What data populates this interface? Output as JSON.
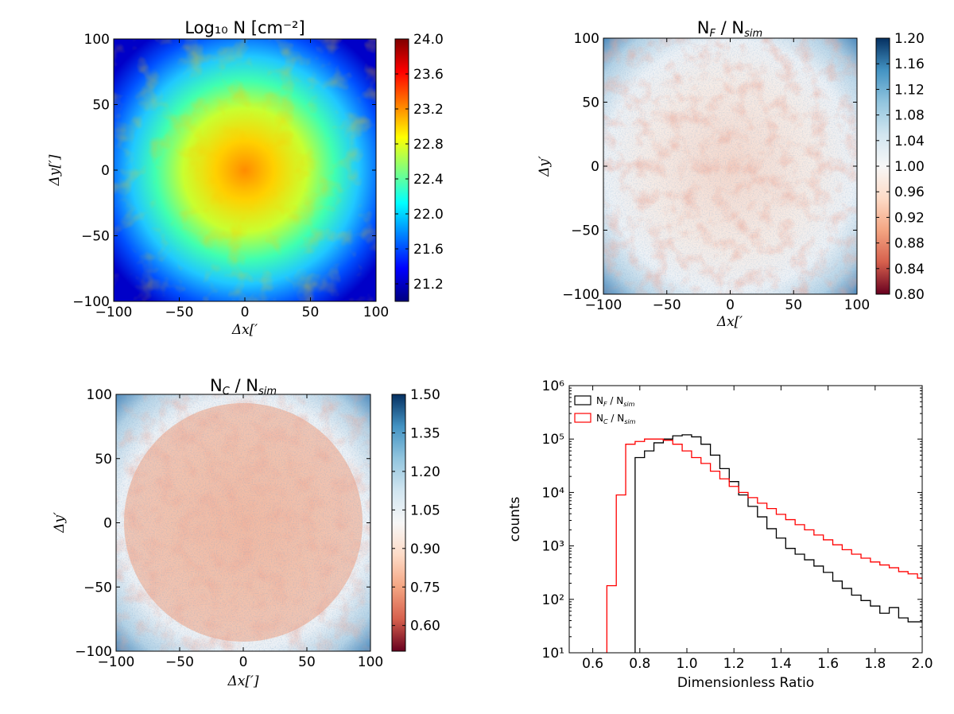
{
  "colors": {
    "jet": [
      "#00007f",
      "#0000ff",
      "#007fff",
      "#00ffff",
      "#7fff7f",
      "#ffff00",
      "#ff7f00",
      "#ff0000",
      "#7f0000"
    ],
    "rdbu": [
      "#67001f",
      "#d6604d",
      "#f4a582",
      "#fddbc7",
      "#f7f7f7",
      "#d1e5f0",
      "#92c5de",
      "#4393c3",
      "#053061"
    ],
    "hist_black": "#000000",
    "hist_red": "#ff0000"
  },
  "chart_data": [
    {
      "type": "heatmap",
      "title": "Log₁₀ N [cm⁻²]",
      "xlabel": "Δx[′",
      "ylabel": "Δy[′]",
      "xlim": [
        -100,
        100
      ],
      "ylim": [
        -100,
        100
      ],
      "xticks": [
        "−100",
        "−50",
        "0",
        "50",
        "100"
      ],
      "yticks": [
        "−100",
        "−50",
        "0",
        "50",
        "100"
      ],
      "colorbar_ticks": [
        "21.2",
        "21.6",
        "22.0",
        "22.4",
        "22.8",
        "23.2",
        "23.6",
        "24.0"
      ],
      "colorbar_range": [
        21.0,
        24.0
      ],
      "colormap": "jet"
    },
    {
      "type": "heatmap",
      "title": "N_F / N_sim",
      "xlabel": "Δx[′",
      "ylabel": "Δy′",
      "xlim": [
        -100,
        100
      ],
      "ylim": [
        -100,
        100
      ],
      "xticks": [
        "−100",
        "−50",
        "0",
        "50",
        "100"
      ],
      "yticks": [
        "−100",
        "−50",
        "0",
        "50",
        "100"
      ],
      "colorbar_ticks": [
        "0.80",
        "0.84",
        "0.88",
        "0.92",
        "0.96",
        "1.00",
        "1.04",
        "1.08",
        "1.12",
        "1.16",
        "1.20"
      ],
      "colorbar_range": [
        0.8,
        1.2
      ],
      "colormap": "RdBu"
    },
    {
      "type": "heatmap",
      "title": "N_C / N_sim",
      "xlabel": "Δx[′]",
      "ylabel": "Δy′",
      "xlim": [
        -100,
        100
      ],
      "ylim": [
        -100,
        100
      ],
      "xticks": [
        "−100",
        "−50",
        "0",
        "50",
        "100"
      ],
      "yticks": [
        "−100",
        "−50",
        "0",
        "50",
        "100"
      ],
      "colorbar_ticks": [
        "0.60",
        "0.75",
        "0.90",
        "1.05",
        "1.20",
        "1.35",
        "1.50"
      ],
      "colorbar_range": [
        0.5,
        1.5
      ],
      "colormap": "RdBu"
    },
    {
      "type": "line",
      "subtype": "step-histogram",
      "xlabel": "Dimensionless Ratio",
      "ylabel": "counts",
      "xlim": [
        0.5,
        2.0
      ],
      "ylim": [
        10,
        1000000
      ],
      "yscale": "log",
      "xticks": [
        "0.6",
        "0.8",
        "1.0",
        "1.2",
        "1.4",
        "1.6",
        "1.8",
        "2.0"
      ],
      "yticks": [
        "10¹",
        "10²",
        "10³",
        "10⁴",
        "10⁵",
        "10⁶"
      ],
      "legend_position": "top-left",
      "bin_width": 0.04,
      "series": [
        {
          "name": "N_F / N_sim",
          "color": "#000000",
          "bin_starts": [
            0.78,
            0.82,
            0.86,
            0.9,
            0.94,
            0.98,
            1.02,
            1.06,
            1.1,
            1.14,
            1.18,
            1.22,
            1.26,
            1.3,
            1.34,
            1.38,
            1.42,
            1.46,
            1.5,
            1.54,
            1.58,
            1.62,
            1.66,
            1.7,
            1.74,
            1.78,
            1.82,
            1.86,
            1.9,
            1.94,
            1.98
          ],
          "values": [
            45000,
            60000,
            85000,
            100000,
            115000,
            120000,
            110000,
            80000,
            50000,
            28000,
            16000,
            9000,
            5500,
            3500,
            2100,
            1400,
            900,
            700,
            550,
            420,
            320,
            220,
            160,
            120,
            95,
            75,
            55,
            70,
            45,
            38,
            38
          ]
        },
        {
          "name": "N_C / N_sim",
          "color": "#ff0000",
          "bin_starts": [
            0.66,
            0.7,
            0.74,
            0.78,
            0.82,
            0.86,
            0.9,
            0.94,
            0.98,
            1.02,
            1.06,
            1.1,
            1.14,
            1.18,
            1.22,
            1.26,
            1.3,
            1.34,
            1.38,
            1.42,
            1.46,
            1.5,
            1.54,
            1.58,
            1.62,
            1.66,
            1.7,
            1.74,
            1.78,
            1.82,
            1.86,
            1.9,
            1.94,
            1.98
          ],
          "values": [
            180,
            9000,
            80000,
            90000,
            100000,
            100000,
            95000,
            80000,
            60000,
            45000,
            35000,
            25000,
            18000,
            13000,
            10000,
            8000,
            6300,
            5000,
            3900,
            3100,
            2500,
            2000,
            1600,
            1300,
            1050,
            850,
            700,
            590,
            500,
            440,
            390,
            330,
            300,
            250
          ]
        }
      ]
    }
  ]
}
